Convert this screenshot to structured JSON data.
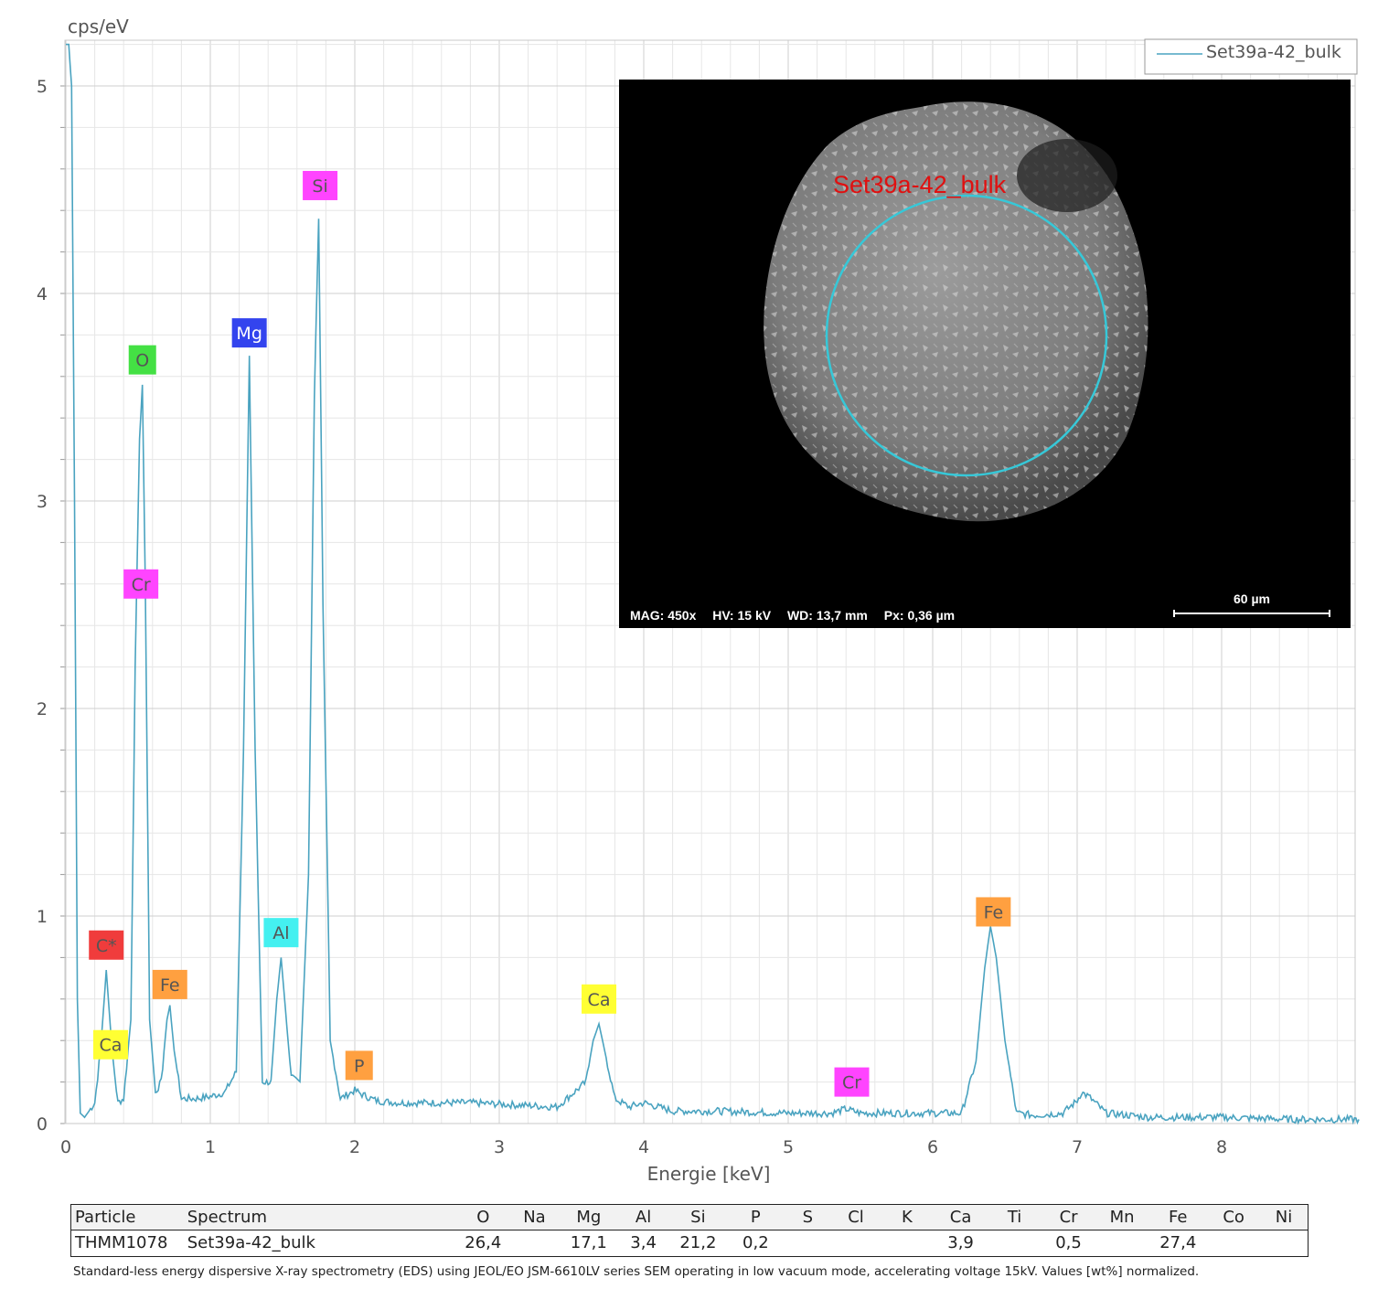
{
  "chart_data": {
    "type": "line",
    "title": "",
    "xlabel": "Energie [keV]",
    "ylabel": "cps/eV",
    "xlim": [
      0,
      8.95
    ],
    "ylim": [
      0,
      5.2
    ],
    "xticks": [
      0,
      1,
      2,
      3,
      4,
      5,
      6,
      7,
      8
    ],
    "yticks": [
      0,
      1,
      2,
      3,
      4,
      5
    ],
    "grid": true,
    "legend_position": "top-right",
    "series": [
      {
        "name": "Set39a-42_bulk",
        "color": "#4aa3c0",
        "x": [
          0.0,
          0.02,
          0.04,
          0.06,
          0.08,
          0.1,
          0.13,
          0.16,
          0.2,
          0.24,
          0.28,
          0.32,
          0.36,
          0.4,
          0.45,
          0.48,
          0.51,
          0.53,
          0.55,
          0.58,
          0.62,
          0.66,
          0.7,
          0.72,
          0.75,
          0.8,
          0.9,
          1.0,
          1.1,
          1.18,
          1.23,
          1.27,
          1.31,
          1.36,
          1.42,
          1.46,
          1.49,
          1.52,
          1.56,
          1.62,
          1.68,
          1.72,
          1.75,
          1.78,
          1.83,
          1.9,
          2.0,
          2.05,
          2.15,
          2.3,
          2.5,
          2.8,
          3.1,
          3.4,
          3.6,
          3.65,
          3.69,
          3.73,
          3.8,
          3.9,
          4.0,
          4.2,
          4.5,
          5.0,
          5.3,
          5.4,
          5.5,
          5.8,
          6.2,
          6.3,
          6.36,
          6.4,
          6.44,
          6.5,
          6.58,
          6.7,
          6.9,
          7.0,
          7.03,
          7.08,
          7.2,
          7.5,
          8.0,
          8.5,
          8.95
        ],
        "y": [
          5.2,
          5.2,
          5.0,
          3.0,
          0.6,
          0.05,
          0.03,
          0.06,
          0.1,
          0.35,
          0.74,
          0.35,
          0.1,
          0.12,
          0.5,
          2.2,
          3.3,
          3.56,
          2.6,
          0.5,
          0.15,
          0.2,
          0.5,
          0.57,
          0.35,
          0.12,
          0.12,
          0.13,
          0.15,
          0.25,
          1.8,
          3.7,
          1.8,
          0.2,
          0.2,
          0.6,
          0.8,
          0.55,
          0.22,
          0.2,
          1.2,
          3.5,
          4.36,
          2.5,
          0.4,
          0.12,
          0.16,
          0.14,
          0.11,
          0.1,
          0.1,
          0.1,
          0.09,
          0.08,
          0.2,
          0.4,
          0.48,
          0.35,
          0.12,
          0.08,
          0.1,
          0.06,
          0.06,
          0.05,
          0.05,
          0.07,
          0.05,
          0.05,
          0.05,
          0.3,
          0.75,
          0.95,
          0.8,
          0.4,
          0.05,
          0.04,
          0.05,
          0.11,
          0.15,
          0.13,
          0.05,
          0.03,
          0.03,
          0.02,
          0.02
        ]
      }
    ],
    "peak_labels": [
      {
        "text": "C*",
        "x": 0.28,
        "y": 0.86,
        "color": "#f03c3c"
      },
      {
        "text": "Ca",
        "x": 0.31,
        "y": 0.38,
        "color": "#ffff33"
      },
      {
        "text": "O",
        "x": 0.53,
        "y": 3.68,
        "color": "#44e044"
      },
      {
        "text": "Cr",
        "x": 0.52,
        "y": 2.6,
        "color": "#ff44ff"
      },
      {
        "text": "Fe",
        "x": 0.72,
        "y": 0.67,
        "color": "#ffa040"
      },
      {
        "text": "Mg",
        "x": 1.27,
        "y": 3.81,
        "color": "#3344ee"
      },
      {
        "text": "Al",
        "x": 1.49,
        "y": 0.92,
        "color": "#44f0f0"
      },
      {
        "text": "Si",
        "x": 1.76,
        "y": 4.52,
        "color": "#ff44ff"
      },
      {
        "text": "P",
        "x": 2.03,
        "y": 0.28,
        "color": "#ffa040"
      },
      {
        "text": "Ca",
        "x": 3.69,
        "y": 0.6,
        "color": "#ffff33"
      },
      {
        "text": "Cr",
        "x": 5.44,
        "y": 0.2,
        "color": "#ff44ff"
      },
      {
        "text": "Fe",
        "x": 6.42,
        "y": 1.02,
        "color": "#ffa040"
      }
    ]
  },
  "sem_image": {
    "spot_label": "Set39a-42_bulk",
    "mag": "MAG: 450x",
    "hv": "HV: 15 kV",
    "wd": "WD: 13,7 mm",
    "px": "Px: 0,36 µm",
    "scale_bar": "60 µm"
  },
  "results_table": {
    "headers": [
      "Particle",
      "Spectrum",
      "O",
      "Na",
      "Mg",
      "Al",
      "Si",
      "P",
      "S",
      "Cl",
      "K",
      "Ca",
      "Ti",
      "Cr",
      "Mn",
      "Fe",
      "Co",
      "Ni"
    ],
    "row": [
      "THMM1078",
      "Set39a-42_bulk",
      "26,4",
      "",
      "17,1",
      "3,4",
      "21,2",
      "0,2",
      "",
      "",
      "",
      "3,9",
      "",
      "0,5",
      "",
      "27,4",
      "",
      ""
    ]
  },
  "footnote": "Standard-less energy dispersive X-ray spectrometry (EDS) using JEOL/EO JSM-6610LV series SEM operating in low vacuum mode, accelerating voltage 15kV. Values [wt%] normalized."
}
